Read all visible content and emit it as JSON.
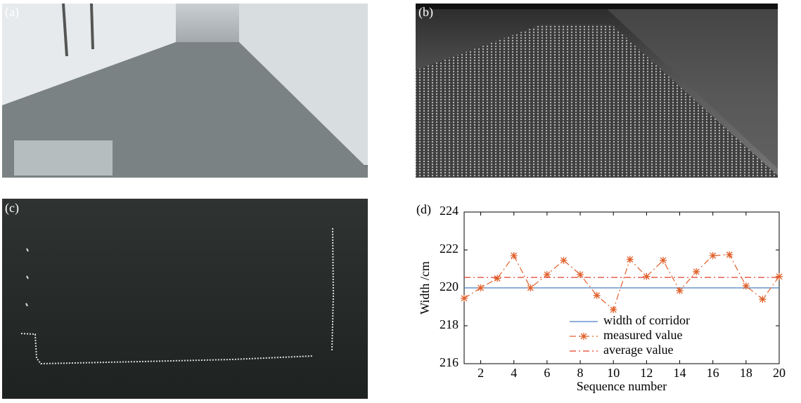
{
  "panels": [
    {
      "label": "(a)"
    },
    {
      "label": "(b)"
    },
    {
      "label": "(c)"
    },
    {
      "label": "(d)"
    }
  ],
  "chart_data": {
    "type": "line",
    "x_label": "Sequence number",
    "y_label": "Width /cm",
    "x": [
      1,
      2,
      3,
      4,
      5,
      6,
      7,
      8,
      9,
      10,
      11,
      12,
      13,
      14,
      15,
      16,
      17,
      18,
      19,
      20
    ],
    "xlim": [
      1,
      20
    ],
    "xticks": [
      2,
      4,
      6,
      8,
      10,
      12,
      14,
      16,
      18,
      20
    ],
    "ylim": [
      216,
      224
    ],
    "yticks": [
      216,
      218,
      220,
      222,
      224
    ],
    "legend": "bottom-center",
    "series": [
      {
        "name": "width of corridor",
        "color": "#4a7fc1",
        "linestyle": "solid",
        "marker": "none",
        "values": [
          220,
          220,
          220,
          220,
          220,
          220,
          220,
          220,
          220,
          220,
          220,
          220,
          220,
          220,
          220,
          220,
          220,
          220,
          220,
          220
        ]
      },
      {
        "name": "measured value",
        "color": "#e0602a",
        "linestyle": "dashdot",
        "marker": "asterisk",
        "values": [
          219.45,
          220.0,
          220.5,
          221.7,
          220.0,
          220.7,
          221.45,
          220.7,
          219.6,
          218.85,
          221.5,
          220.6,
          221.45,
          219.85,
          220.85,
          221.7,
          221.75,
          220.1,
          219.4,
          220.6
        ]
      },
      {
        "name": "average value",
        "color": "#e0402a",
        "linestyle": "dashdot",
        "marker": "none",
        "values": [
          220.55,
          220.55,
          220.55,
          220.55,
          220.55,
          220.55,
          220.55,
          220.55,
          220.55,
          220.55,
          220.55,
          220.55,
          220.55,
          220.55,
          220.55,
          220.55,
          220.55,
          220.55,
          220.55,
          220.55
        ]
      }
    ]
  }
}
